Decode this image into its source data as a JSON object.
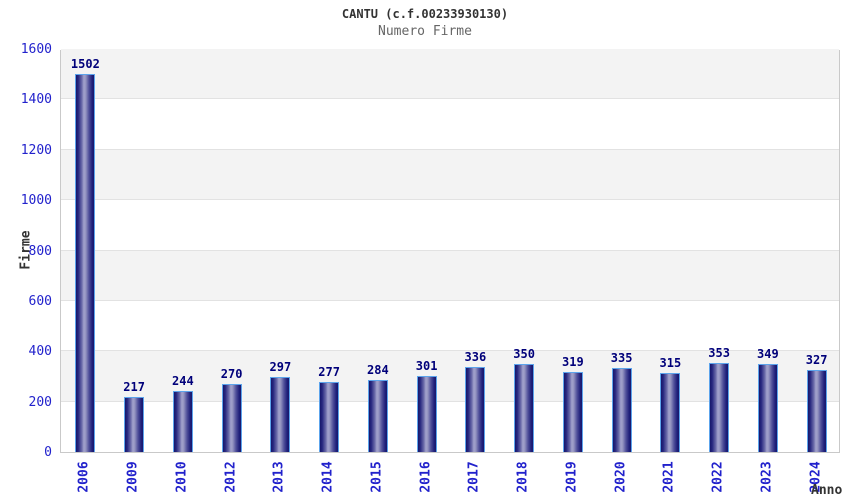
{
  "chart_data": {
    "type": "bar",
    "title": "CANTU (c.f.00233930130)",
    "subtitle": "Numero Firme",
    "xlabel": "Anno",
    "ylabel": "Firme",
    "ylim": [
      0,
      1600
    ],
    "ytick_step": 200,
    "grid": "horizontal bands, alternating white/gray every 200 units",
    "legend": "none",
    "categories": [
      "2006",
      "2009",
      "2010",
      "2012",
      "2013",
      "2014",
      "2015",
      "2016",
      "2017",
      "2018",
      "2019",
      "2020",
      "2021",
      "2022",
      "2023",
      "2024"
    ],
    "values": [
      1502,
      217,
      244,
      270,
      297,
      277,
      284,
      301,
      336,
      350,
      319,
      335,
      315,
      353,
      349,
      327
    ],
    "colors": {
      "bar_edge": "#5ca4ec",
      "bar_gradient_dark": "#17176b",
      "bar_gradient_light": "#a3a3cd",
      "axis_tick_text": "#2222cc",
      "value_label_text": "#00007a",
      "title_text": "#333333",
      "subtitle_text": "#666666",
      "band_fill": "#f3f3f3",
      "grid_line": "#e2e2e2",
      "plot_border": "#c9c9c9"
    }
  }
}
